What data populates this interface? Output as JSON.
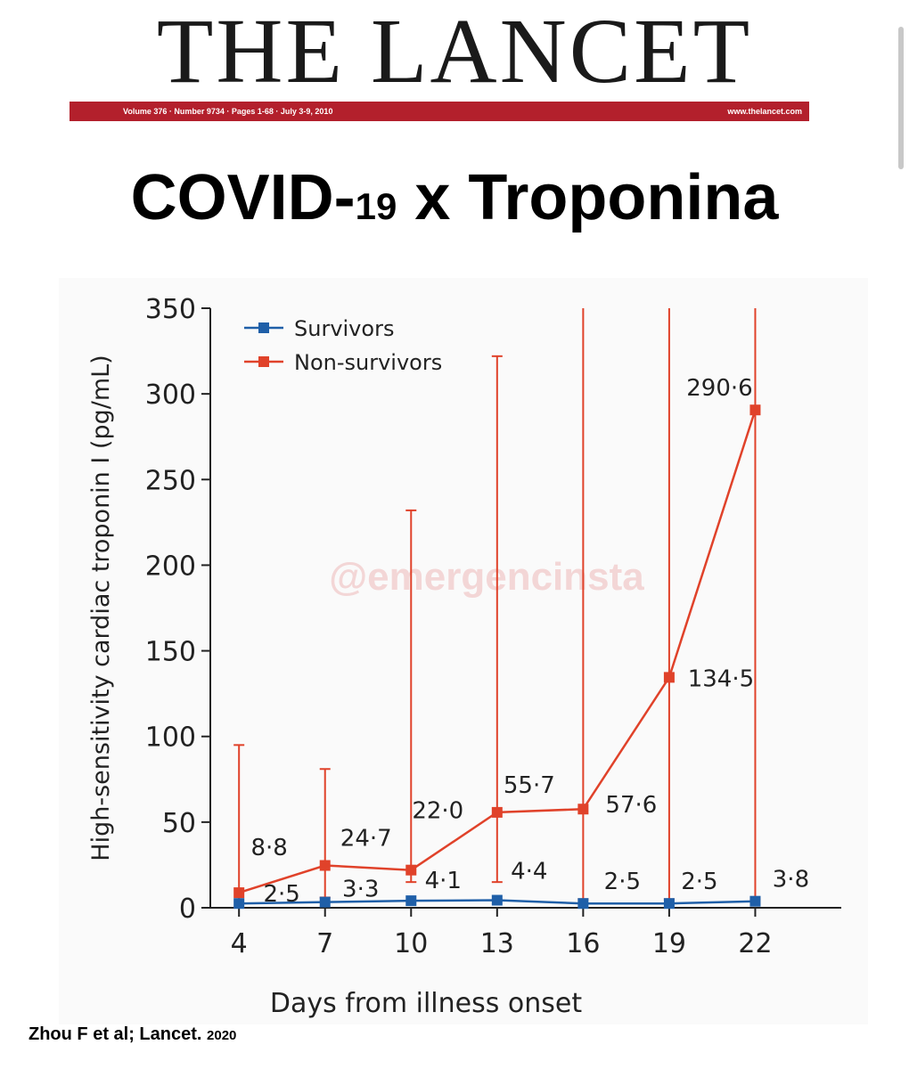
{
  "journal": {
    "title": "THE LANCET",
    "issue_line": "Volume 376 · Number 9734 · Pages 1-68 · July 3-9, 2010",
    "website": "www.thelancet.com",
    "band_color": "#b3202c"
  },
  "headline": {
    "part1": "COVID-",
    "part2": "19",
    "part3": " x Troponina"
  },
  "watermark": "@emergencinsta",
  "citation": {
    "text": "Zhou F et al; Lancet.",
    "year": "2020"
  },
  "chart_data": {
    "type": "line",
    "title": "",
    "xlabel": "Days from illness onset",
    "ylabel": "High-sensitivity cardiac troponin I (pg/mL)",
    "x": [
      4,
      7,
      10,
      13,
      16,
      19,
      22
    ],
    "xlim": [
      3,
      25
    ],
    "ylim": [
      0,
      350
    ],
    "yticks": [
      0,
      50,
      100,
      150,
      200,
      250,
      300,
      350
    ],
    "grid": false,
    "legend_position": "top-left",
    "series": [
      {
        "name": "Survivors",
        "color": "#1f5fa8",
        "values": [
          2.5,
          3.3,
          4.1,
          4.4,
          2.5,
          2.5,
          3.8
        ],
        "labels": [
          "2·5",
          "3·3",
          "4·1",
          "4·4",
          "2·5",
          "2·5",
          "3·8"
        ],
        "error_upper": [
          null,
          null,
          null,
          null,
          null,
          null,
          null
        ]
      },
      {
        "name": "Non-survivors",
        "color": "#e0422a",
        "values": [
          8.8,
          24.7,
          22.0,
          55.7,
          57.6,
          134.5,
          290.6
        ],
        "labels": [
          "8·8",
          "24·7",
          "22·0",
          "55·7",
          "57·6",
          "134·5",
          "290·6"
        ],
        "error_lower": [
          0,
          6,
          15,
          15,
          5,
          5,
          5
        ],
        "error_upper": [
          95,
          81,
          232,
          322,
          350,
          350,
          350
        ]
      }
    ]
  }
}
